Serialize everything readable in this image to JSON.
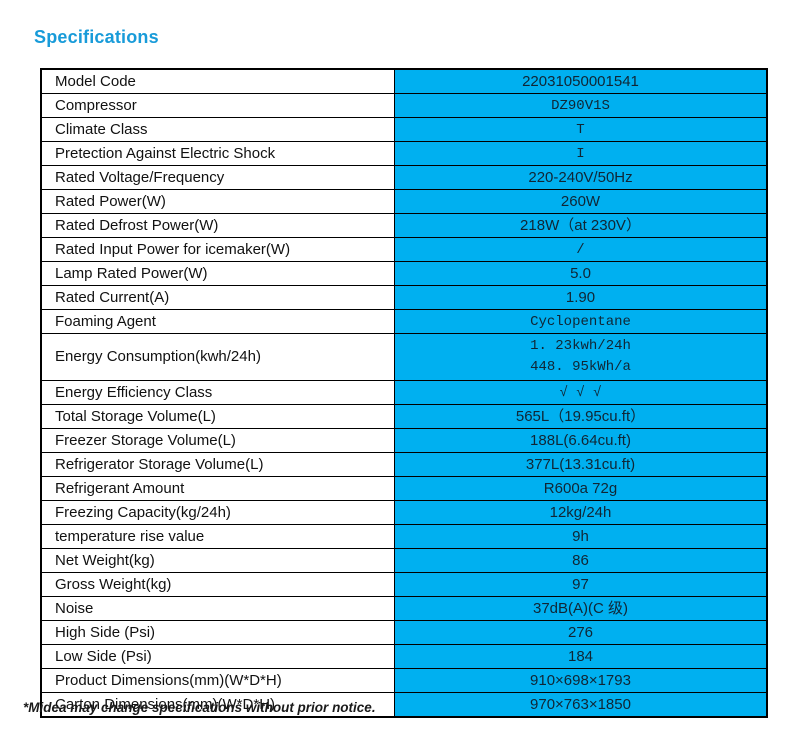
{
  "title": "Specifications",
  "footnote": "*Midea may change specifications without prior notice.",
  "colors": {
    "accent_blue": "#189BD9",
    "value_cell_cyan": "#00B0F0",
    "border_black": "#000000"
  },
  "table": {
    "rows": [
      {
        "label": "Model Code",
        "value": "22031050001541",
        "value_font": "sans"
      },
      {
        "label": "Compressor",
        "value": "DZ90V1S",
        "value_font": "mono"
      },
      {
        "label": "Climate Class",
        "value": "T",
        "value_font": "mono"
      },
      {
        "label": "Pretection Against Electric Shock",
        "value": "I",
        "value_font": "mono"
      },
      {
        "label": "Rated Voltage/Frequency",
        "value": "220-240V/50Hz",
        "value_font": "sans"
      },
      {
        "label": "Rated Power(W)",
        "value": "260W",
        "value_font": "sans"
      },
      {
        "label": "Rated Defrost Power(W)",
        "value": "218W（at 230V）",
        "value_font": "sans"
      },
      {
        "label": "Rated Input Power for icemaker(W)",
        "value": "/",
        "value_font": "mono"
      },
      {
        "label": "Lamp Rated Power(W)",
        "value": "5.0",
        "value_font": "sans"
      },
      {
        "label": "Rated Current(A)",
        "value": "1.90",
        "value_font": "sans"
      },
      {
        "label": "Foaming Agent",
        "value": "Cyclopentane",
        "value_font": "mono"
      },
      {
        "label": "Energy Consumption(kwh/24h)",
        "value": "1. 23kwh/24h",
        "value2": "448. 95kWh/a",
        "value_font": "mono",
        "double": true
      },
      {
        "label": "Energy Efficiency Class",
        "value": "√ √ √",
        "value_font": "mono"
      },
      {
        "label": "Total Storage Volume(L)",
        "value": "565L（19.95cu.ft）",
        "value_font": "sans"
      },
      {
        "label": "Freezer Storage Volume(L)",
        "value": "188L(6.64cu.ft)",
        "value_font": "sans"
      },
      {
        "label": "Refrigerator Storage Volume(L)",
        "value": "377L(13.31cu.ft)",
        "value_font": "sans"
      },
      {
        "label": "Refrigerant Amount",
        "value": "R600a 72g",
        "value_font": "sans"
      },
      {
        "label": "Freezing Capacity(kg/24h)",
        "value": "12kg/24h",
        "value_font": "sans"
      },
      {
        "label": "temperature rise value",
        "value": "9h",
        "value_font": "sans"
      },
      {
        "label": "Net Weight(kg)",
        "value": "86",
        "value_font": "sans"
      },
      {
        "label": "Gross Weight(kg)",
        "value": "97",
        "value_font": "sans"
      },
      {
        "label": "Noise",
        "value": "37dB(A)(C 级)",
        "value_font": "sans"
      },
      {
        "label": "High Side (Psi)",
        "value": "276",
        "value_font": "sans"
      },
      {
        "label": "Low Side (Psi)",
        "value": "184",
        "value_font": "sans"
      },
      {
        "label": "Product Dimensions(mm)(W*D*H)",
        "value": "910×698×1793",
        "value_font": "sans"
      },
      {
        "label": "Carton Dimensions(mm)(W*D*H)",
        "value": "970×763×1850",
        "value_font": "sans"
      }
    ]
  }
}
